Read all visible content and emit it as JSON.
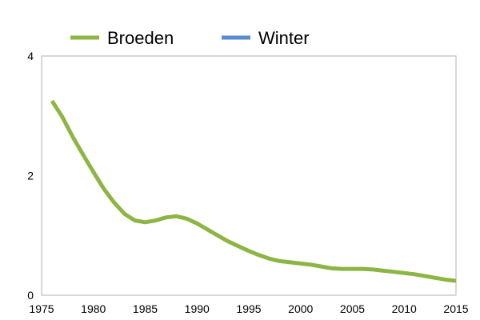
{
  "chart_data": {
    "type": "line",
    "title": "",
    "xlabel": "",
    "ylabel": "",
    "xlim": [
      1975,
      2015
    ],
    "ylim": [
      0,
      4
    ],
    "x_ticks": [
      "1975",
      "1980",
      "1985",
      "1990",
      "1995",
      "2000",
      "2005",
      "2010",
      "2015"
    ],
    "y_ticks": [
      "0",
      "2",
      "4"
    ],
    "grid": false,
    "legend_position": "top",
    "series": [
      {
        "name": "Broeden",
        "color": "#8db543",
        "x": [
          1976,
          1977,
          1978,
          1979,
          1980,
          1981,
          1982,
          1983,
          1984,
          1985,
          1986,
          1987,
          1988,
          1989,
          1990,
          1991,
          1992,
          1993,
          1994,
          1995,
          1996,
          1997,
          1998,
          1999,
          2000,
          2001,
          2002,
          2003,
          2004,
          2005,
          2006,
          2007,
          2008,
          2009,
          2010,
          2011,
          2012,
          2013,
          2014,
          2015
        ],
        "values": [
          3.25,
          2.98,
          2.65,
          2.35,
          2.06,
          1.78,
          1.55,
          1.36,
          1.25,
          1.22,
          1.25,
          1.3,
          1.32,
          1.28,
          1.2,
          1.1,
          1.0,
          0.9,
          0.82,
          0.74,
          0.67,
          0.61,
          0.57,
          0.55,
          0.53,
          0.51,
          0.48,
          0.45,
          0.44,
          0.44,
          0.44,
          0.43,
          0.41,
          0.39,
          0.37,
          0.35,
          0.32,
          0.29,
          0.26,
          0.24
        ]
      },
      {
        "name": "Winter",
        "color": "#5b8bd1",
        "x": [],
        "values": []
      }
    ]
  }
}
